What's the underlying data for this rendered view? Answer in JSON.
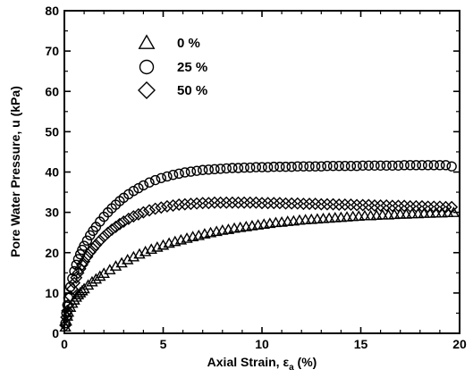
{
  "chart_data": {
    "type": "scatter",
    "title": "",
    "xlabel": "Axial  Strain, εa (%)",
    "xlabel_parts": {
      "main": "Axial  Strain, ε",
      "sub": "a",
      "tail": " (%)"
    },
    "ylabel": "Pore Water Pressure, u (kPa)",
    "xlim": [
      0,
      20
    ],
    "ylim": [
      0,
      80
    ],
    "xticks": [
      0,
      5,
      10,
      15,
      20
    ],
    "yticks": [
      0,
      10,
      20,
      30,
      40,
      50,
      60,
      70,
      80
    ],
    "grid": false,
    "legend_position": "top-left",
    "series": [
      {
        "name": "0 %",
        "marker": "triangle",
        "x": [
          0.05,
          0.1,
          0.15,
          0.2,
          0.3,
          0.4,
          0.5,
          0.6,
          0.7,
          0.8,
          0.9,
          1.0,
          1.2,
          1.4,
          1.6,
          1.8,
          2.0,
          2.3,
          2.6,
          2.9,
          3.2,
          3.5,
          3.8,
          4.1,
          4.4,
          4.7,
          5.0,
          5.3,
          5.6,
          5.9,
          6.2,
          6.5,
          6.8,
          7.1,
          7.4,
          7.7,
          8.0,
          8.3,
          8.6,
          8.9,
          9.2,
          9.5,
          9.8,
          10.1,
          10.4,
          10.7,
          11.0,
          11.3,
          11.6,
          11.9,
          12.2,
          12.5,
          12.8,
          13.1,
          13.4,
          13.7,
          14.0,
          14.3,
          14.6,
          14.9,
          15.2,
          15.5,
          15.8,
          16.1,
          16.4,
          16.7,
          17.0,
          17.3,
          17.6,
          17.9,
          18.2,
          18.5,
          18.8,
          19.1,
          19.4,
          19.7
        ],
        "y": [
          1.5,
          3.0,
          4.2,
          5.2,
          6.4,
          7.4,
          8.2,
          8.9,
          9.5,
          10.0,
          10.5,
          11.0,
          11.9,
          12.7,
          13.4,
          14.1,
          14.8,
          15.7,
          16.6,
          17.4,
          18.2,
          18.9,
          19.6,
          20.2,
          20.8,
          21.3,
          21.8,
          22.3,
          22.7,
          23.1,
          23.5,
          23.9,
          24.2,
          24.6,
          24.9,
          25.2,
          25.5,
          25.7,
          26.0,
          26.2,
          26.4,
          26.6,
          26.8,
          27.0,
          27.2,
          27.4,
          27.5,
          27.7,
          27.8,
          28.0,
          28.1,
          28.2,
          28.3,
          28.4,
          28.5,
          28.6,
          28.7,
          28.8,
          28.9,
          29.0,
          29.1,
          29.1,
          29.2,
          29.3,
          29.3,
          29.4,
          29.5,
          29.5,
          29.6,
          29.6,
          29.7,
          29.7,
          29.8,
          29.8,
          29.9,
          29.9
        ]
      },
      {
        "name": "25 %",
        "marker": "circle",
        "x": [
          0.05,
          0.1,
          0.15,
          0.2,
          0.3,
          0.4,
          0.5,
          0.6,
          0.7,
          0.8,
          0.9,
          1.0,
          1.15,
          1.3,
          1.45,
          1.6,
          1.8,
          2.0,
          2.2,
          2.4,
          2.6,
          2.8,
          3.0,
          3.25,
          3.5,
          3.75,
          4.0,
          4.3,
          4.6,
          4.9,
          5.2,
          5.5,
          5.8,
          6.1,
          6.4,
          6.7,
          7.0,
          7.3,
          7.6,
          7.9,
          8.2,
          8.5,
          8.8,
          9.1,
          9.4,
          9.7,
          10.0,
          10.3,
          10.6,
          10.9,
          11.2,
          11.5,
          11.8,
          12.1,
          12.4,
          12.7,
          13.0,
          13.3,
          13.6,
          13.9,
          14.2,
          14.5,
          14.8,
          15.1,
          15.4,
          15.7,
          16.0,
          16.3,
          16.6,
          16.9,
          17.2,
          17.5,
          17.8,
          18.1,
          18.4,
          18.7,
          19.0,
          19.3,
          19.6
        ],
        "y": [
          2.5,
          5.0,
          7.0,
          8.8,
          11.5,
          13.6,
          15.4,
          17.0,
          18.4,
          19.6,
          20.7,
          21.7,
          23.0,
          24.3,
          25.4,
          26.4,
          27.7,
          28.9,
          30.0,
          31.0,
          31.9,
          32.8,
          33.6,
          34.5,
          35.3,
          36.0,
          36.7,
          37.4,
          38.0,
          38.5,
          38.9,
          39.3,
          39.6,
          39.9,
          40.1,
          40.3,
          40.5,
          40.6,
          40.7,
          40.8,
          40.9,
          41.0,
          41.0,
          41.1,
          41.1,
          41.2,
          41.2,
          41.2,
          41.3,
          41.3,
          41.3,
          41.3,
          41.4,
          41.4,
          41.4,
          41.4,
          41.4,
          41.5,
          41.5,
          41.5,
          41.5,
          41.5,
          41.5,
          41.6,
          41.6,
          41.6,
          41.6,
          41.6,
          41.6,
          41.6,
          41.7,
          41.7,
          41.7,
          41.7,
          41.7,
          41.7,
          41.7,
          41.7,
          41.4
        ]
      },
      {
        "name": "50 %",
        "marker": "diamond",
        "x": [
          0.05,
          0.1,
          0.15,
          0.2,
          0.3,
          0.4,
          0.5,
          0.6,
          0.7,
          0.8,
          0.9,
          1.0,
          1.15,
          1.3,
          1.45,
          1.6,
          1.8,
          2.0,
          2.2,
          2.4,
          2.6,
          2.8,
          3.0,
          3.25,
          3.5,
          3.75,
          4.0,
          4.3,
          4.6,
          4.9,
          5.2,
          5.5,
          5.8,
          6.1,
          6.4,
          6.7,
          7.0,
          7.3,
          7.6,
          7.9,
          8.2,
          8.5,
          8.8,
          9.1,
          9.4,
          9.7,
          10.0,
          10.3,
          10.6,
          10.9,
          11.2,
          11.5,
          11.8,
          12.1,
          12.4,
          12.7,
          13.0,
          13.3,
          13.6,
          13.9,
          14.2,
          14.5,
          14.8,
          15.1,
          15.4,
          15.7,
          16.0,
          16.3,
          16.6,
          16.9,
          17.2,
          17.5,
          17.8,
          18.1,
          18.4,
          18.7,
          19.0,
          19.3,
          19.6
        ],
        "y": [
          2.0,
          4.0,
          5.6,
          7.0,
          9.2,
          11.0,
          12.5,
          13.8,
          15.0,
          16.0,
          17.0,
          17.8,
          19.0,
          20.1,
          21.0,
          21.9,
          23.0,
          24.0,
          24.9,
          25.7,
          26.4,
          27.1,
          27.7,
          28.4,
          29.0,
          29.5,
          30.0,
          30.5,
          30.9,
          31.2,
          31.5,
          31.7,
          31.9,
          32.0,
          32.1,
          32.2,
          32.3,
          32.3,
          32.4,
          32.4,
          32.4,
          32.4,
          32.4,
          32.4,
          32.4,
          32.4,
          32.3,
          32.3,
          32.3,
          32.3,
          32.2,
          32.2,
          32.2,
          32.1,
          32.1,
          32.1,
          32.0,
          32.0,
          32.0,
          31.9,
          31.9,
          31.9,
          31.8,
          31.8,
          31.8,
          31.7,
          31.7,
          31.7,
          31.6,
          31.6,
          31.6,
          31.5,
          31.5,
          31.5,
          31.4,
          31.4,
          31.4,
          31.3,
          31.3
        ]
      }
    ]
  }
}
